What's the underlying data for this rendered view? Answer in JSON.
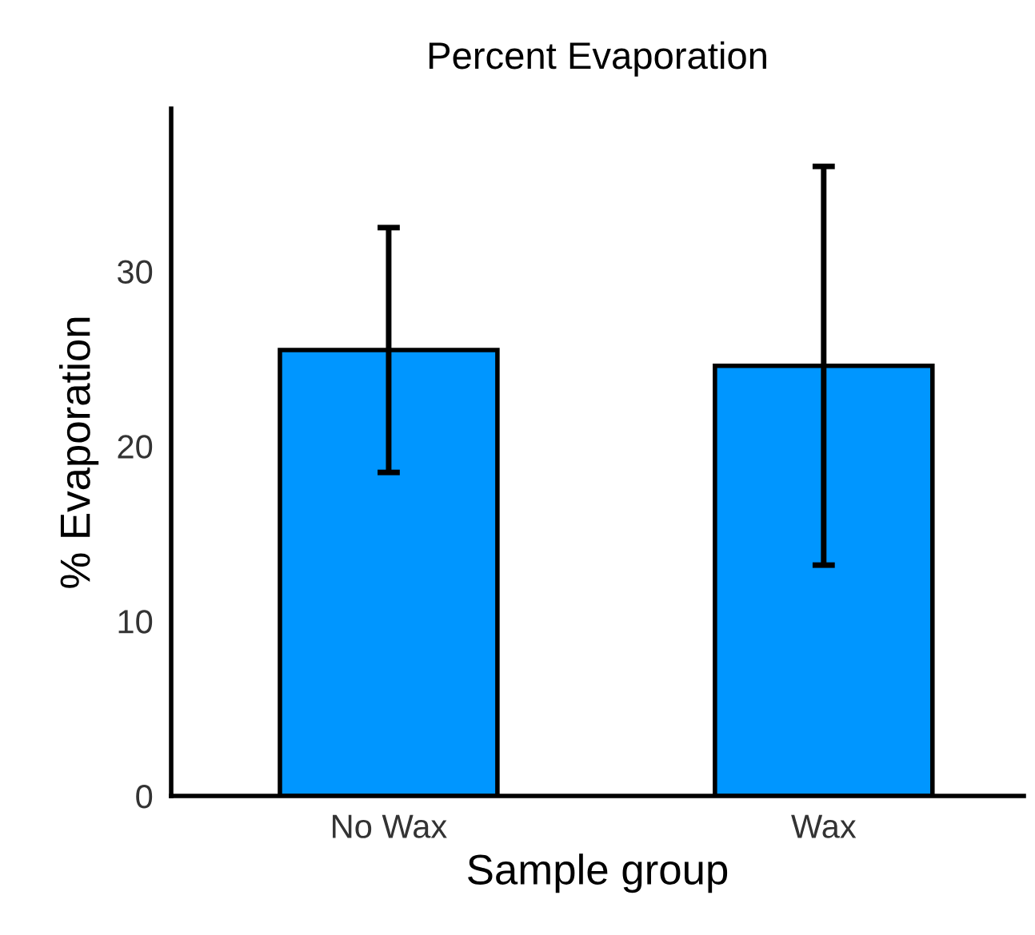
{
  "chart_data": {
    "type": "bar",
    "title": "Percent Evaporation",
    "xlabel": "Sample group",
    "ylabel": "% Evaporation",
    "categories": [
      "No Wax",
      "Wax"
    ],
    "values": [
      25.5,
      24.6
    ],
    "errors": [
      7.0,
      11.4
    ],
    "color": "#0096ff",
    "ylim": [
      0,
      39.3
    ],
    "yticks": [
      0,
      10,
      20,
      30
    ],
    "grid": false,
    "legend": false
  }
}
